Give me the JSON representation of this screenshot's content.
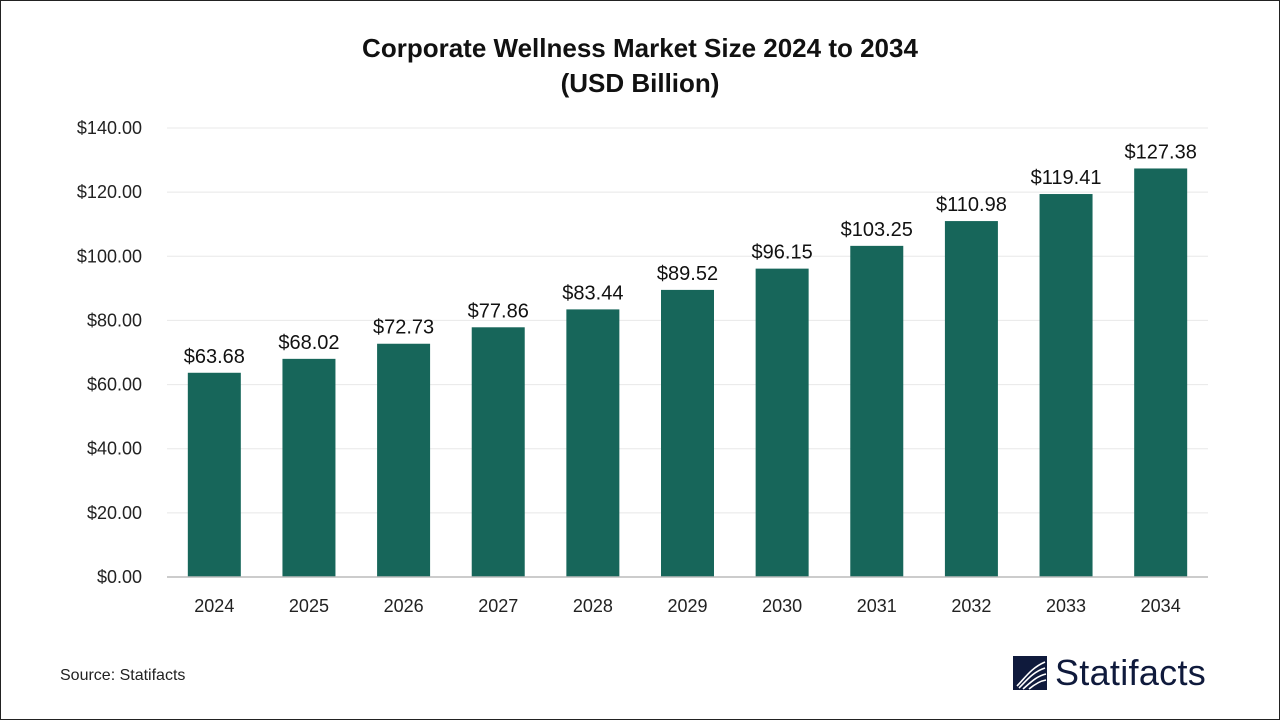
{
  "chart_data": {
    "type": "bar",
    "title": "Corporate Wellness Market Size 2024 to 2034",
    "subtitle": "(USD Billion)",
    "categories": [
      "2024",
      "2025",
      "2026",
      "2027",
      "2028",
      "2029",
      "2030",
      "2031",
      "2032",
      "2033",
      "2034"
    ],
    "values": [
      63.68,
      68.02,
      72.73,
      77.86,
      83.44,
      89.52,
      96.15,
      103.25,
      110.98,
      119.41,
      127.38
    ],
    "data_labels": [
      "$63.68",
      "$68.02",
      "$72.73",
      "$77.86",
      "$83.44",
      "$89.52",
      "$96.15",
      "$103.25",
      "$110.98",
      "$119.41",
      "$127.38"
    ],
    "y_ticks": [
      "$0.00",
      "$20.00",
      "$40.00",
      "$60.00",
      "$80.00",
      "$100.00",
      "$120.00",
      "$140.00"
    ],
    "ylim": [
      0,
      140
    ],
    "grid": true,
    "bar_color": "#17665a",
    "xlabel": "",
    "ylabel": ""
  },
  "source": "Source: Statifacts",
  "logo": {
    "text": "Statifacts",
    "color": "#0f1a3c"
  }
}
